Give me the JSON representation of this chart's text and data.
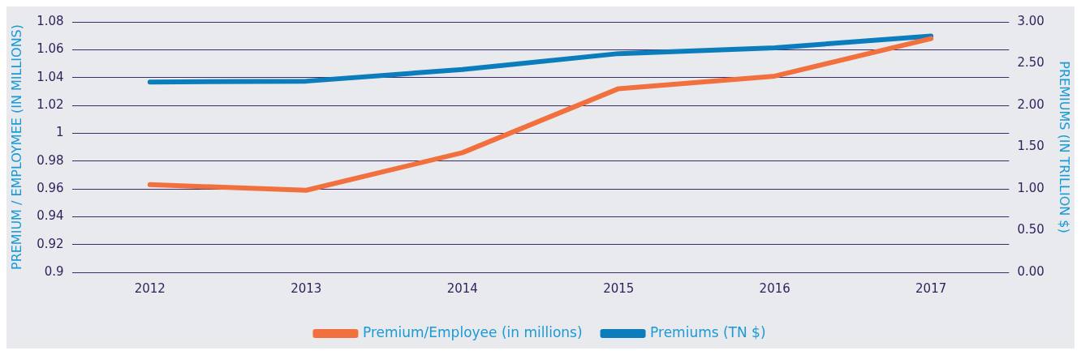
{
  "chart_data": {
    "type": "line",
    "categories": [
      "2012",
      "2013",
      "2014",
      "2015",
      "2016",
      "2017"
    ],
    "series": [
      {
        "name": "Premium/Employee (in millions)",
        "color": "#f2703e",
        "values": [
          0.963,
          0.959,
          0.986,
          1.032,
          1.041,
          1.068
        ]
      },
      {
        "name": "Premiums (TN $)",
        "color": "#0b7dbd",
        "axis": "y2",
        "values": [
          2.28,
          2.29,
          2.43,
          2.62,
          2.69,
          2.83
        ]
      }
    ],
    "ylabel": "PREMIUM / EMPLOYMEE (IN MILLIONS)",
    "y2label": "PREMIUMS (IN TRILLION $)",
    "ylim": [
      0.9,
      1.08
    ],
    "yticks": [
      0.9,
      0.92,
      0.94,
      0.96,
      0.98,
      1,
      1.02,
      1.04,
      1.06,
      1.08
    ],
    "y2lim": [
      0,
      3
    ],
    "y2ticks": [
      {
        "value": 0,
        "label": "0.00"
      },
      {
        "value": 0.5,
        "label": "0.50"
      },
      {
        "value": 1,
        "label": "1.00"
      },
      {
        "value": 1.5,
        "label": "1.50"
      },
      {
        "value": 2,
        "label": "2.00"
      },
      {
        "value": 2.5,
        "label": "2.50"
      },
      {
        "value": 3,
        "label": "3.00"
      }
    ],
    "grid": "y",
    "legend": "bottom",
    "marker": "none",
    "line_style": "solid"
  }
}
